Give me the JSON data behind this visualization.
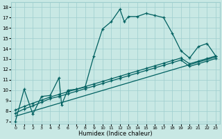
{
  "title": "",
  "xlabel": "Humidex (Indice chaleur)",
  "xlim": [
    -0.5,
    23.5
  ],
  "ylim": [
    6.8,
    18.5
  ],
  "yticks": [
    7,
    8,
    9,
    10,
    11,
    12,
    13,
    14,
    15,
    16,
    17,
    18
  ],
  "xticks": [
    0,
    1,
    2,
    3,
    4,
    5,
    6,
    7,
    8,
    9,
    10,
    11,
    12,
    13,
    14,
    15,
    16,
    17,
    18,
    19,
    20,
    21,
    22,
    23
  ],
  "background_color": "#c8e8e4",
  "grid_color": "#9ecece",
  "line_color": "#006060",
  "line1_x": [
    0,
    1,
    2,
    3,
    4,
    5,
    5.3,
    6,
    7,
    8,
    9,
    10,
    11,
    12,
    12.5,
    13,
    14,
    15,
    16,
    17,
    18,
    19,
    20,
    21,
    22,
    23
  ],
  "line1_y": [
    7.0,
    10.1,
    7.7,
    9.4,
    9.5,
    11.2,
    8.6,
    10.0,
    10.1,
    10.3,
    13.3,
    15.9,
    16.6,
    17.8,
    16.6,
    17.1,
    17.1,
    17.4,
    17.2,
    17.0,
    15.5,
    13.8,
    13.1,
    14.2,
    14.5,
    13.3
  ],
  "line2_x": [
    0,
    1,
    2,
    3,
    4,
    5,
    6,
    7,
    8,
    9,
    10,
    11,
    12,
    13,
    14,
    15,
    16,
    17,
    18,
    19,
    20,
    21,
    22,
    23
  ],
  "line2_y": [
    7.8,
    8.2,
    8.5,
    8.85,
    9.2,
    9.4,
    9.65,
    9.9,
    10.15,
    10.4,
    10.65,
    10.9,
    11.15,
    11.4,
    11.65,
    11.9,
    12.15,
    12.4,
    12.65,
    12.9,
    12.3,
    12.55,
    12.8,
    13.05
  ],
  "line3_x": [
    0,
    1,
    2,
    3,
    4,
    5,
    6,
    7,
    8,
    9,
    10,
    11,
    12,
    13,
    14,
    15,
    16,
    17,
    18,
    19,
    20,
    21,
    22,
    23
  ],
  "line3_y": [
    8.1,
    8.45,
    8.75,
    9.05,
    9.35,
    9.6,
    9.85,
    10.1,
    10.35,
    10.6,
    10.85,
    11.1,
    11.35,
    11.6,
    11.85,
    12.1,
    12.35,
    12.6,
    12.85,
    13.1,
    12.55,
    12.8,
    13.05,
    13.3
  ],
  "line4_x": [
    0,
    23
  ],
  "line4_y": [
    7.5,
    13.2
  ]
}
